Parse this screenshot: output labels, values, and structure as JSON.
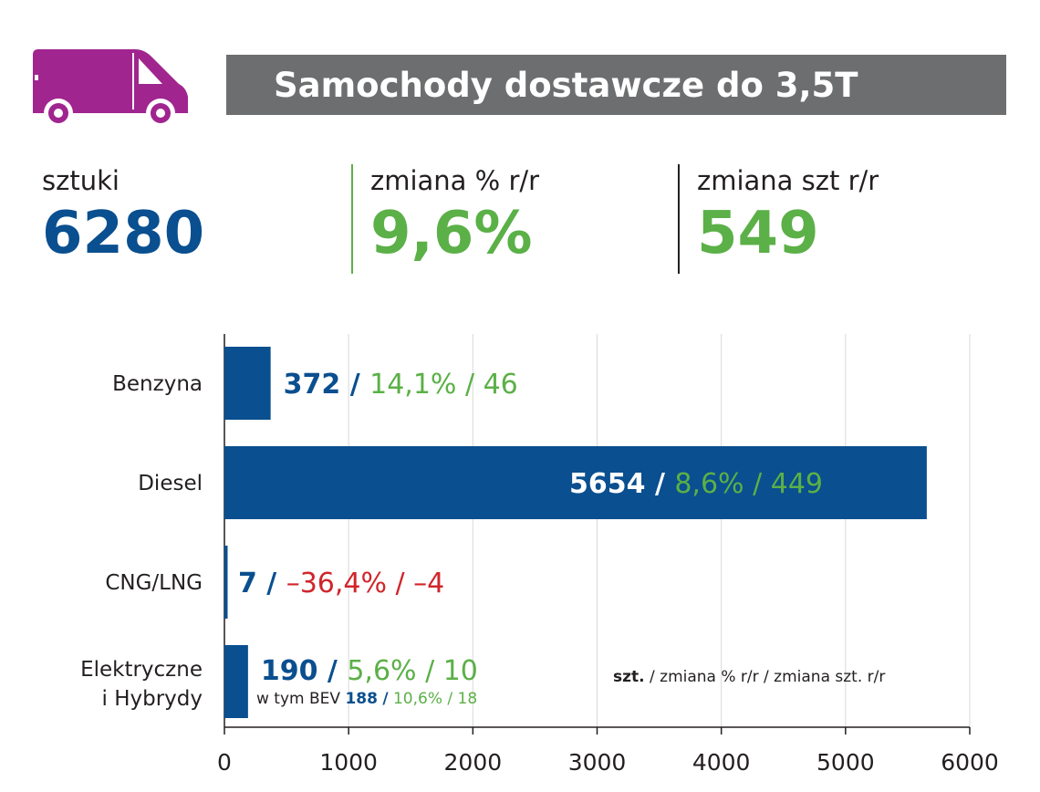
{
  "header": {
    "title": "Samochody dostawcze do 3,5T",
    "icon": "van-icon",
    "icon_color": "#a0258f",
    "bar_color": "#6d6e70"
  },
  "stats": [
    {
      "label": "sztuki",
      "value": "6280",
      "color": "#0a4f8f"
    },
    {
      "label": "zmiana % r/r",
      "value": "9,6%",
      "color": "#5bb047"
    },
    {
      "label": "zmiana szt r/r",
      "value": "549",
      "color": "#5bb047"
    }
  ],
  "colors": {
    "bar": "#0a4f8f",
    "positive": "#5bb047",
    "negative": "#d0262c",
    "grid": "#d9d9d9",
    "axis": "#231f20"
  },
  "chart_data": {
    "type": "bar",
    "orientation": "horizontal",
    "categories": [
      "Benzyna",
      "Diesel",
      "CNG/LNG",
      "Elektryczne i Hybrydy"
    ],
    "values": [
      372,
      5654,
      7,
      190
    ],
    "change_pct": [
      "14,1%",
      "8,6%",
      "–36,4%",
      "5,6%"
    ],
    "change_units": [
      "46",
      "449",
      "–4",
      "10"
    ],
    "xlim": [
      0,
      6000
    ],
    "xticks": [
      0,
      1000,
      2000,
      3000,
      4000,
      5000,
      6000
    ],
    "grid": true,
    "sub_note": {
      "prefix": "w tym BEV",
      "value": "188",
      "change_pct": "10,6%",
      "change_units": "18"
    },
    "legend": {
      "bold": "szt.",
      "rest": "/ zmiana % r/r / zmiana szt. r/r"
    }
  }
}
